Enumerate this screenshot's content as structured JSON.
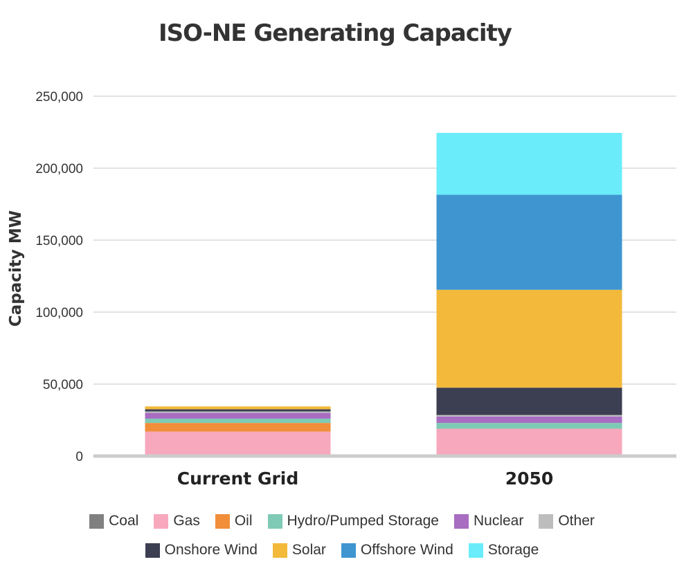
{
  "chart_data": {
    "type": "bar",
    "stacked": true,
    "title": "ISO-NE Generating Capacity",
    "xlabel": "",
    "ylabel": "Capacity MW",
    "ylim": [
      0,
      250000
    ],
    "yticks": [
      0,
      50000,
      100000,
      150000,
      200000,
      250000
    ],
    "ytick_labels": [
      "0",
      "50,000",
      "100,000",
      "150,000",
      "200,000",
      "250,000"
    ],
    "categories": [
      "Current Grid",
      "2050"
    ],
    "series": [
      {
        "name": "Coal",
        "color": "#808080",
        "values": [
          500,
          0
        ]
      },
      {
        "name": "Gas",
        "color": "#f7a8bd",
        "values": [
          16500,
          19000
        ]
      },
      {
        "name": "Oil",
        "color": "#f08e3a",
        "values": [
          6000,
          0
        ]
      },
      {
        "name": "Hydro/Pumped Storage",
        "color": "#7ecab5",
        "values": [
          3000,
          4000
        ]
      },
      {
        "name": "Nuclear",
        "color": "#a86cc1",
        "values": [
          4000,
          4500
        ]
      },
      {
        "name": "Other",
        "color": "#bdbdbd",
        "values": [
          1000,
          1000
        ]
      },
      {
        "name": "Onshore Wind",
        "color": "#3c3f52",
        "values": [
          1500,
          19000
        ]
      },
      {
        "name": "Solar",
        "color": "#f2b93b",
        "values": [
          2000,
          68000
        ]
      },
      {
        "name": "Offshore Wind",
        "color": "#3f95d0",
        "values": [
          0,
          66000
        ]
      },
      {
        "name": "Storage",
        "color": "#6aecfa",
        "values": [
          0,
          43000
        ]
      }
    ],
    "legend_position": "bottom",
    "grid": true
  }
}
